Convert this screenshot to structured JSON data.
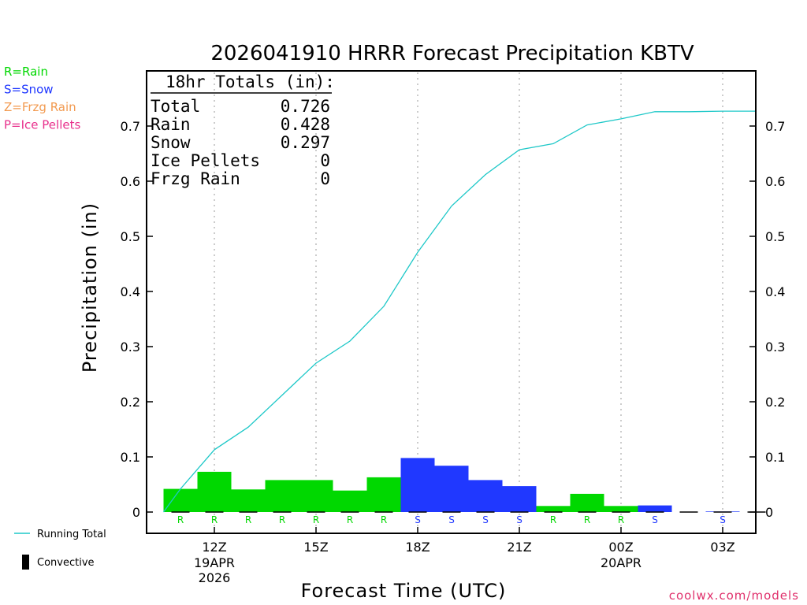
{
  "chart_data": {
    "type": "bar",
    "title": "2026041910 HRRR Forecast Precipitation KBTV",
    "xlabel": "Forecast Time (UTC)",
    "ylabel": "Precipitation (in)",
    "ylim": [
      0,
      0.8
    ],
    "yticks": [
      "0",
      "0.1",
      "0.2",
      "0.3",
      "0.4",
      "0.5",
      "0.6",
      "0.7"
    ],
    "xticks": [
      {
        "hour": 12,
        "label": "12Z",
        "sub": [
          "19APR",
          "2026"
        ]
      },
      {
        "hour": 15,
        "label": "15Z",
        "sub": []
      },
      {
        "hour": 18,
        "label": "18Z",
        "sub": []
      },
      {
        "hour": 21,
        "label": "21Z",
        "sub": []
      },
      {
        "hour": 24,
        "label": "00Z",
        "sub": [
          "20APR"
        ]
      },
      {
        "hour": 27,
        "label": "03Z",
        "sub": []
      }
    ],
    "xrange_hours": [
      10,
      28
    ],
    "bars": [
      {
        "hour": 11,
        "value": 0.042,
        "type": "R"
      },
      {
        "hour": 12,
        "value": 0.073,
        "type": "R"
      },
      {
        "hour": 13,
        "value": 0.041,
        "type": "R"
      },
      {
        "hour": 14,
        "value": 0.058,
        "type": "R"
      },
      {
        "hour": 15,
        "value": 0.058,
        "type": "R"
      },
      {
        "hour": 16,
        "value": 0.039,
        "type": "R"
      },
      {
        "hour": 17,
        "value": 0.063,
        "type": "R"
      },
      {
        "hour": 18,
        "value": 0.098,
        "type": "S"
      },
      {
        "hour": 19,
        "value": 0.084,
        "type": "S"
      },
      {
        "hour": 20,
        "value": 0.058,
        "type": "S"
      },
      {
        "hour": 21,
        "value": 0.047,
        "type": "S"
      },
      {
        "hour": 22,
        "value": 0.011,
        "type": "R"
      },
      {
        "hour": 23,
        "value": 0.033,
        "type": "R"
      },
      {
        "hour": 24,
        "value": 0.011,
        "type": "R"
      },
      {
        "hour": 25,
        "value": 0.012,
        "type": "S"
      },
      {
        "hour": 26,
        "value": 0.0,
        "type": ""
      },
      {
        "hour": 27,
        "value": 0.001,
        "type": "S"
      },
      {
        "hour": 28,
        "value": 0.0,
        "type": ""
      }
    ],
    "running_total": [
      {
        "hour": 10.5,
        "value": 0.0
      },
      {
        "hour": 11,
        "value": 0.042
      },
      {
        "hour": 12,
        "value": 0.113
      },
      {
        "hour": 13,
        "value": 0.154
      },
      {
        "hour": 14,
        "value": 0.212
      },
      {
        "hour": 15,
        "value": 0.27
      },
      {
        "hour": 16,
        "value": 0.31
      },
      {
        "hour": 17,
        "value": 0.373
      },
      {
        "hour": 18,
        "value": 0.471
      },
      {
        "hour": 19,
        "value": 0.555
      },
      {
        "hour": 20,
        "value": 0.612
      },
      {
        "hour": 21,
        "value": 0.657
      },
      {
        "hour": 22,
        "value": 0.668
      },
      {
        "hour": 23,
        "value": 0.702
      },
      {
        "hour": 24,
        "value": 0.713
      },
      {
        "hour": 25,
        "value": 0.726
      },
      {
        "hour": 26,
        "value": 0.726
      },
      {
        "hour": 27,
        "value": 0.727
      },
      {
        "hour": 28,
        "value": 0.727
      }
    ],
    "colors": {
      "R": "#00d800",
      "S": "#2038ff",
      "Z": "#f29a50",
      "P": "#e8308c",
      "line": "#1ec8c8"
    }
  },
  "type_legend": [
    {
      "label": "R=Rain",
      "color": "#00d800"
    },
    {
      "label": "S=Snow",
      "color": "#2038ff"
    },
    {
      "label": "Z=Frzg Rain",
      "color": "#f29a50"
    },
    {
      "label": "P=Ice Pellets",
      "color": "#e8308c"
    }
  ],
  "totals": {
    "header": "18hr Totals (in):",
    "rows": [
      {
        "label": "Total",
        "value": "0.726"
      },
      {
        "label": "Rain",
        "value": "0.428"
      },
      {
        "label": "Snow",
        "value": "0.297"
      },
      {
        "label": "Ice Pellets",
        "value": "0"
      },
      {
        "label": "Frzg Rain",
        "value": "0"
      }
    ]
  },
  "bottom_legend": {
    "running_total": "Running Total",
    "convective": "Convective"
  },
  "source": "coolwx.com/models"
}
